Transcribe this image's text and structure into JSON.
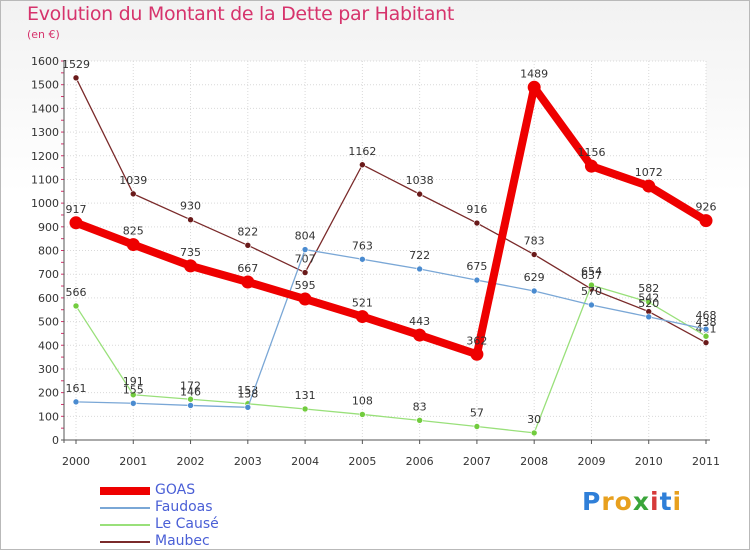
{
  "title": "Evolution du Montant de la Dette par Habitant",
  "subtitle": "(en €)",
  "logo": {
    "text": "Proxiti",
    "letter_colors": [
      "#2f7fd8",
      "#e8a01e",
      "#e8a01e",
      "#3aa53a",
      "#d63a3a",
      "#2f7fd8",
      "#e8a01e"
    ]
  },
  "chart_data": {
    "type": "line",
    "categories": [
      "2000",
      "2001",
      "2002",
      "2003",
      "2004",
      "2005",
      "2006",
      "2007",
      "2008",
      "2009",
      "2010",
      "2011"
    ],
    "ylim": [
      0,
      1600
    ],
    "yticks": [
      "0",
      "100",
      "200",
      "300",
      "400",
      "500",
      "600",
      "700",
      "800",
      "900",
      "1000",
      "1100",
      "1200",
      "1300",
      "1400",
      "1500",
      "1600"
    ],
    "grid": true,
    "legend_placement": "bottom-left",
    "series": [
      {
        "name": "Maubec",
        "color": "#7a2a2a",
        "marker_color": "#6a1a1a",
        "values": [
          1529,
          1039,
          930,
          822,
          707,
          1162,
          1038,
          916,
          783,
          637,
          542,
          411
        ],
        "labels": [
          "1529",
          "1039",
          "930",
          "822",
          "707",
          "1162",
          "1038",
          "916",
          "783",
          "637",
          "542",
          "411"
        ]
      },
      {
        "name": "Le Causé",
        "color": "#99e07a",
        "marker_color": "#72cc3e",
        "values": [
          566,
          191,
          172,
          153,
          131,
          108,
          83,
          57,
          30,
          654,
          582,
          438
        ],
        "labels": [
          "566",
          "191",
          "172",
          "153",
          "131",
          "108",
          "83",
          "57",
          "30",
          "654",
          "582",
          "438"
        ]
      },
      {
        "name": "Faudoas",
        "color": "#7aa7d6",
        "marker_color": "#4a8bd0",
        "values": [
          161,
          155,
          146,
          138,
          804,
          763,
          722,
          675,
          629,
          570,
          520,
          468
        ],
        "labels": [
          "161",
          "155",
          "146",
          "138",
          "804",
          "763",
          "722",
          "675",
          "629",
          "570",
          "520",
          "468"
        ]
      },
      {
        "name": "GOAS",
        "color": "#ee0000",
        "marker_color": "#ee0000",
        "values": [
          917,
          825,
          735,
          667,
          595,
          521,
          443,
          362,
          1489,
          1156,
          1072,
          926
        ],
        "labels": [
          "917",
          "825",
          "735",
          "667",
          "595",
          "521",
          "443",
          "362",
          "1489",
          "1156",
          "1072",
          "926"
        ]
      }
    ],
    "legend_order": [
      "GOAS",
      "Faudoas",
      "Le Causé",
      "Maubec"
    ]
  }
}
